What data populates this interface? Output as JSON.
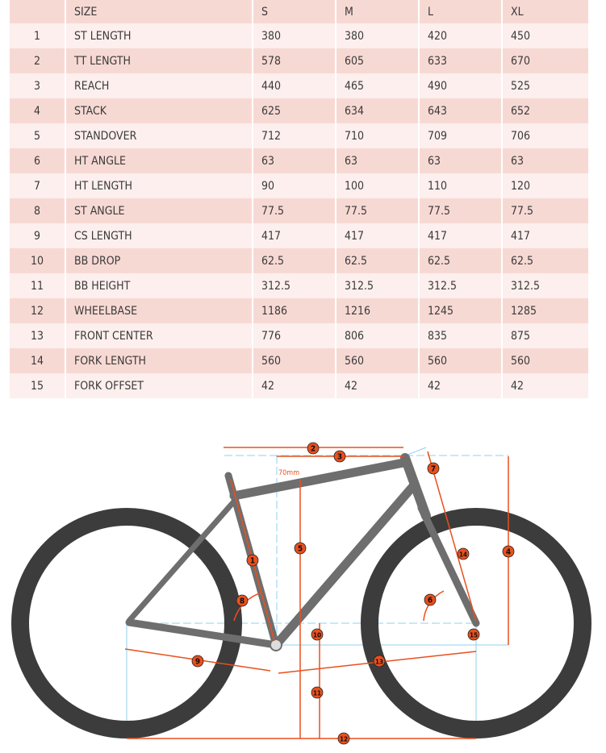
{
  "table": {
    "headers": [
      "",
      "SIZE",
      "S",
      "M",
      "L",
      "XL"
    ],
    "rows": [
      [
        "1",
        "ST LENGTH",
        "380",
        "380",
        "420",
        "450"
      ],
      [
        "2",
        "TT LENGTH",
        "578",
        "605",
        "633",
        "670"
      ],
      [
        "3",
        "REACH",
        "440",
        "465",
        "490",
        "525"
      ],
      [
        "4",
        "STACK",
        "625",
        "634",
        "643",
        "652"
      ],
      [
        "5",
        "STANDOVER",
        "712",
        "710",
        "709",
        "706"
      ],
      [
        "6",
        "HT ANGLE",
        "63",
        "63",
        "63",
        "63"
      ],
      [
        "7",
        "HT LENGTH",
        "90",
        "100",
        "110",
        "120"
      ],
      [
        "8",
        "ST ANGLE",
        "77.5",
        "77.5",
        "77.5",
        "77.5"
      ],
      [
        "9",
        "CS LENGTH",
        "417",
        "417",
        "417",
        "417"
      ],
      [
        "10",
        "BB DROP",
        "62.5",
        "62.5",
        "62.5",
        "62.5"
      ],
      [
        "11",
        "BB HEIGHT",
        "312.5",
        "312.5",
        "312.5",
        "312.5"
      ],
      [
        "12",
        "WHEELBASE",
        "1186",
        "1216",
        "1245",
        "1285"
      ],
      [
        "13",
        "FRONT CENTER",
        "776",
        "806",
        "835",
        "875"
      ],
      [
        "14",
        "FORK LENGTH",
        "560",
        "560",
        "560",
        "560"
      ],
      [
        "15",
        "FORK OFFSET",
        "42",
        "42",
        "42",
        "42"
      ]
    ]
  },
  "diagram": {
    "offset_label": "70mm",
    "markers": [
      "1",
      "2",
      "3",
      "4",
      "5",
      "6",
      "7",
      "8",
      "9",
      "10",
      "11",
      "12",
      "13",
      "14",
      "15"
    ],
    "colors": {
      "dimension": "#e8501e",
      "guide": "#8fd0ef",
      "frame": "#6e6e6e",
      "tire": "#3c3c3c"
    }
  }
}
